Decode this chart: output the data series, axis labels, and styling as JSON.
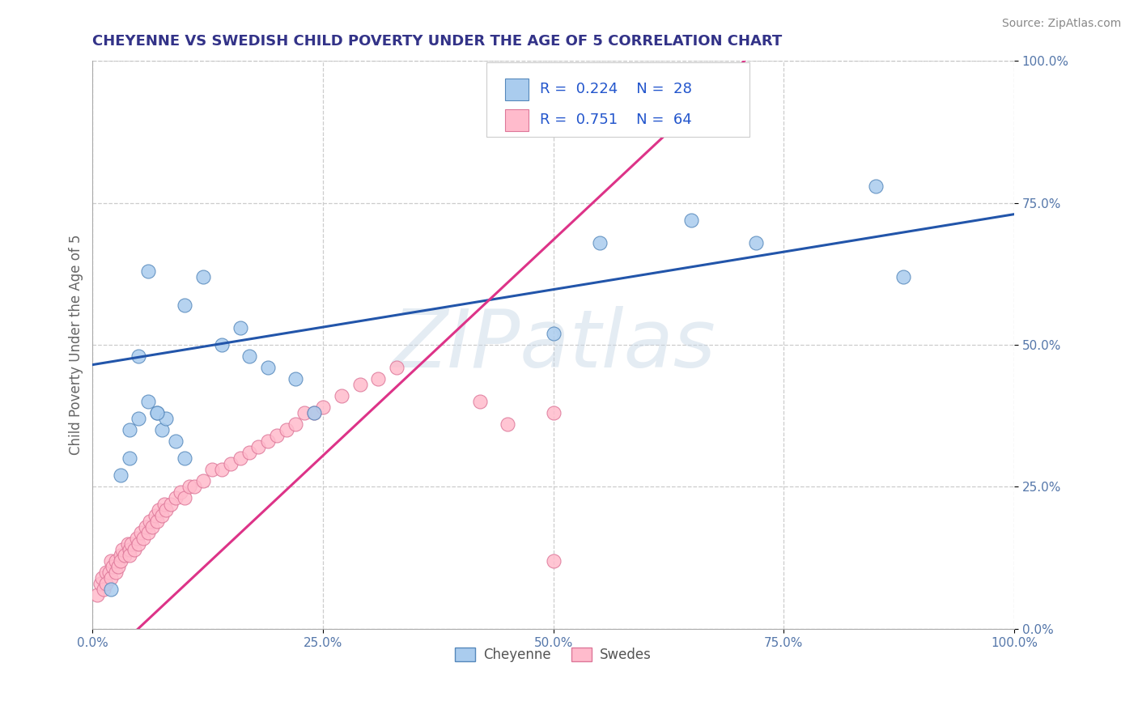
{
  "title": "CHEYENNE VS SWEDISH CHILD POVERTY UNDER THE AGE OF 5 CORRELATION CHART",
  "source": "Source: ZipAtlas.com",
  "ylabel": "Child Poverty Under the Age of 5",
  "xlim": [
    0.0,
    1.0
  ],
  "ylim": [
    0.0,
    1.0
  ],
  "xtick_vals": [
    0.0,
    0.25,
    0.5,
    0.75,
    1.0
  ],
  "xtick_labels": [
    "0.0%",
    "25.0%",
    "50.0%",
    "75.0%",
    "100.0%"
  ],
  "ytick_vals": [
    0.0,
    0.25,
    0.5,
    0.75,
    1.0
  ],
  "ytick_labels": [
    "0.0%",
    "25.0%",
    "50.0%",
    "75.0%",
    "100.0%"
  ],
  "cheyenne_color": "#AACCEE",
  "cheyenne_edge": "#5588BB",
  "swedes_color": "#FFBBCC",
  "swedes_edge": "#DD7799",
  "cheyenne_R": 0.224,
  "cheyenne_N": 28,
  "swedes_R": 0.751,
  "swedes_N": 64,
  "blue_line_color": "#2255AA",
  "pink_line_color": "#DD3388",
  "dashed_line_color": "#BBBBBB",
  "cheyenne_x": [
    0.02,
    0.04,
    0.05,
    0.06,
    0.07,
    0.075,
    0.08,
    0.09,
    0.1,
    0.1,
    0.12,
    0.14,
    0.16,
    0.17,
    0.19,
    0.22,
    0.24,
    0.5,
    0.55,
    0.65,
    0.72,
    0.85,
    0.88,
    0.03,
    0.04,
    0.05,
    0.06,
    0.07
  ],
  "cheyenne_y": [
    0.07,
    0.3,
    0.48,
    0.63,
    0.38,
    0.35,
    0.37,
    0.33,
    0.57,
    0.3,
    0.62,
    0.5,
    0.53,
    0.48,
    0.46,
    0.44,
    0.38,
    0.52,
    0.68,
    0.72,
    0.68,
    0.78,
    0.62,
    0.27,
    0.35,
    0.37,
    0.4,
    0.38
  ],
  "swedes_x": [
    0.005,
    0.008,
    0.01,
    0.012,
    0.015,
    0.015,
    0.018,
    0.02,
    0.02,
    0.022,
    0.025,
    0.025,
    0.028,
    0.03,
    0.03,
    0.032,
    0.035,
    0.038,
    0.04,
    0.04,
    0.042,
    0.045,
    0.048,
    0.05,
    0.052,
    0.055,
    0.058,
    0.06,
    0.062,
    0.065,
    0.068,
    0.07,
    0.072,
    0.075,
    0.078,
    0.08,
    0.085,
    0.09,
    0.095,
    0.1,
    0.105,
    0.11,
    0.12,
    0.13,
    0.14,
    0.15,
    0.16,
    0.17,
    0.18,
    0.19,
    0.2,
    0.21,
    0.22,
    0.23,
    0.24,
    0.25,
    0.27,
    0.29,
    0.31,
    0.33,
    0.45,
    0.5,
    0.5,
    0.42
  ],
  "swedes_y": [
    0.06,
    0.08,
    0.09,
    0.07,
    0.1,
    0.08,
    0.1,
    0.09,
    0.12,
    0.11,
    0.1,
    0.12,
    0.11,
    0.13,
    0.12,
    0.14,
    0.13,
    0.15,
    0.14,
    0.13,
    0.15,
    0.14,
    0.16,
    0.15,
    0.17,
    0.16,
    0.18,
    0.17,
    0.19,
    0.18,
    0.2,
    0.19,
    0.21,
    0.2,
    0.22,
    0.21,
    0.22,
    0.23,
    0.24,
    0.23,
    0.25,
    0.25,
    0.26,
    0.28,
    0.28,
    0.29,
    0.3,
    0.31,
    0.32,
    0.33,
    0.34,
    0.35,
    0.36,
    0.38,
    0.38,
    0.39,
    0.41,
    0.43,
    0.44,
    0.46,
    0.36,
    0.38,
    0.12,
    0.4
  ],
  "background_color": "#FFFFFF",
  "grid_color": "#CCCCCC"
}
